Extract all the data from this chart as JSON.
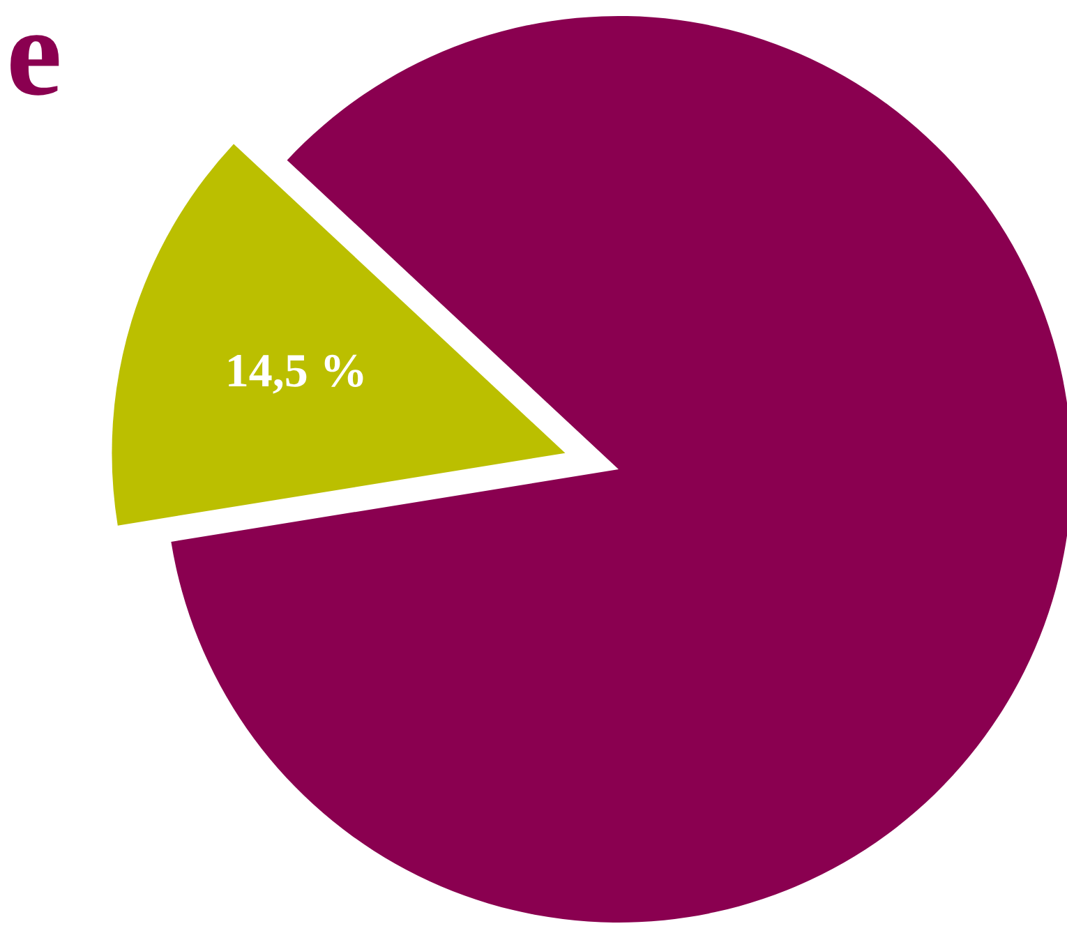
{
  "chart_data": {
    "type": "pie",
    "categories": [
      null,
      null
    ],
    "values": [
      85.5,
      14.5
    ],
    "colors": [
      "#8a0050",
      "#bbbf00"
    ],
    "value_labels": [
      null,
      "14,5 %"
    ],
    "annotations": [
      "e"
    ]
  }
}
